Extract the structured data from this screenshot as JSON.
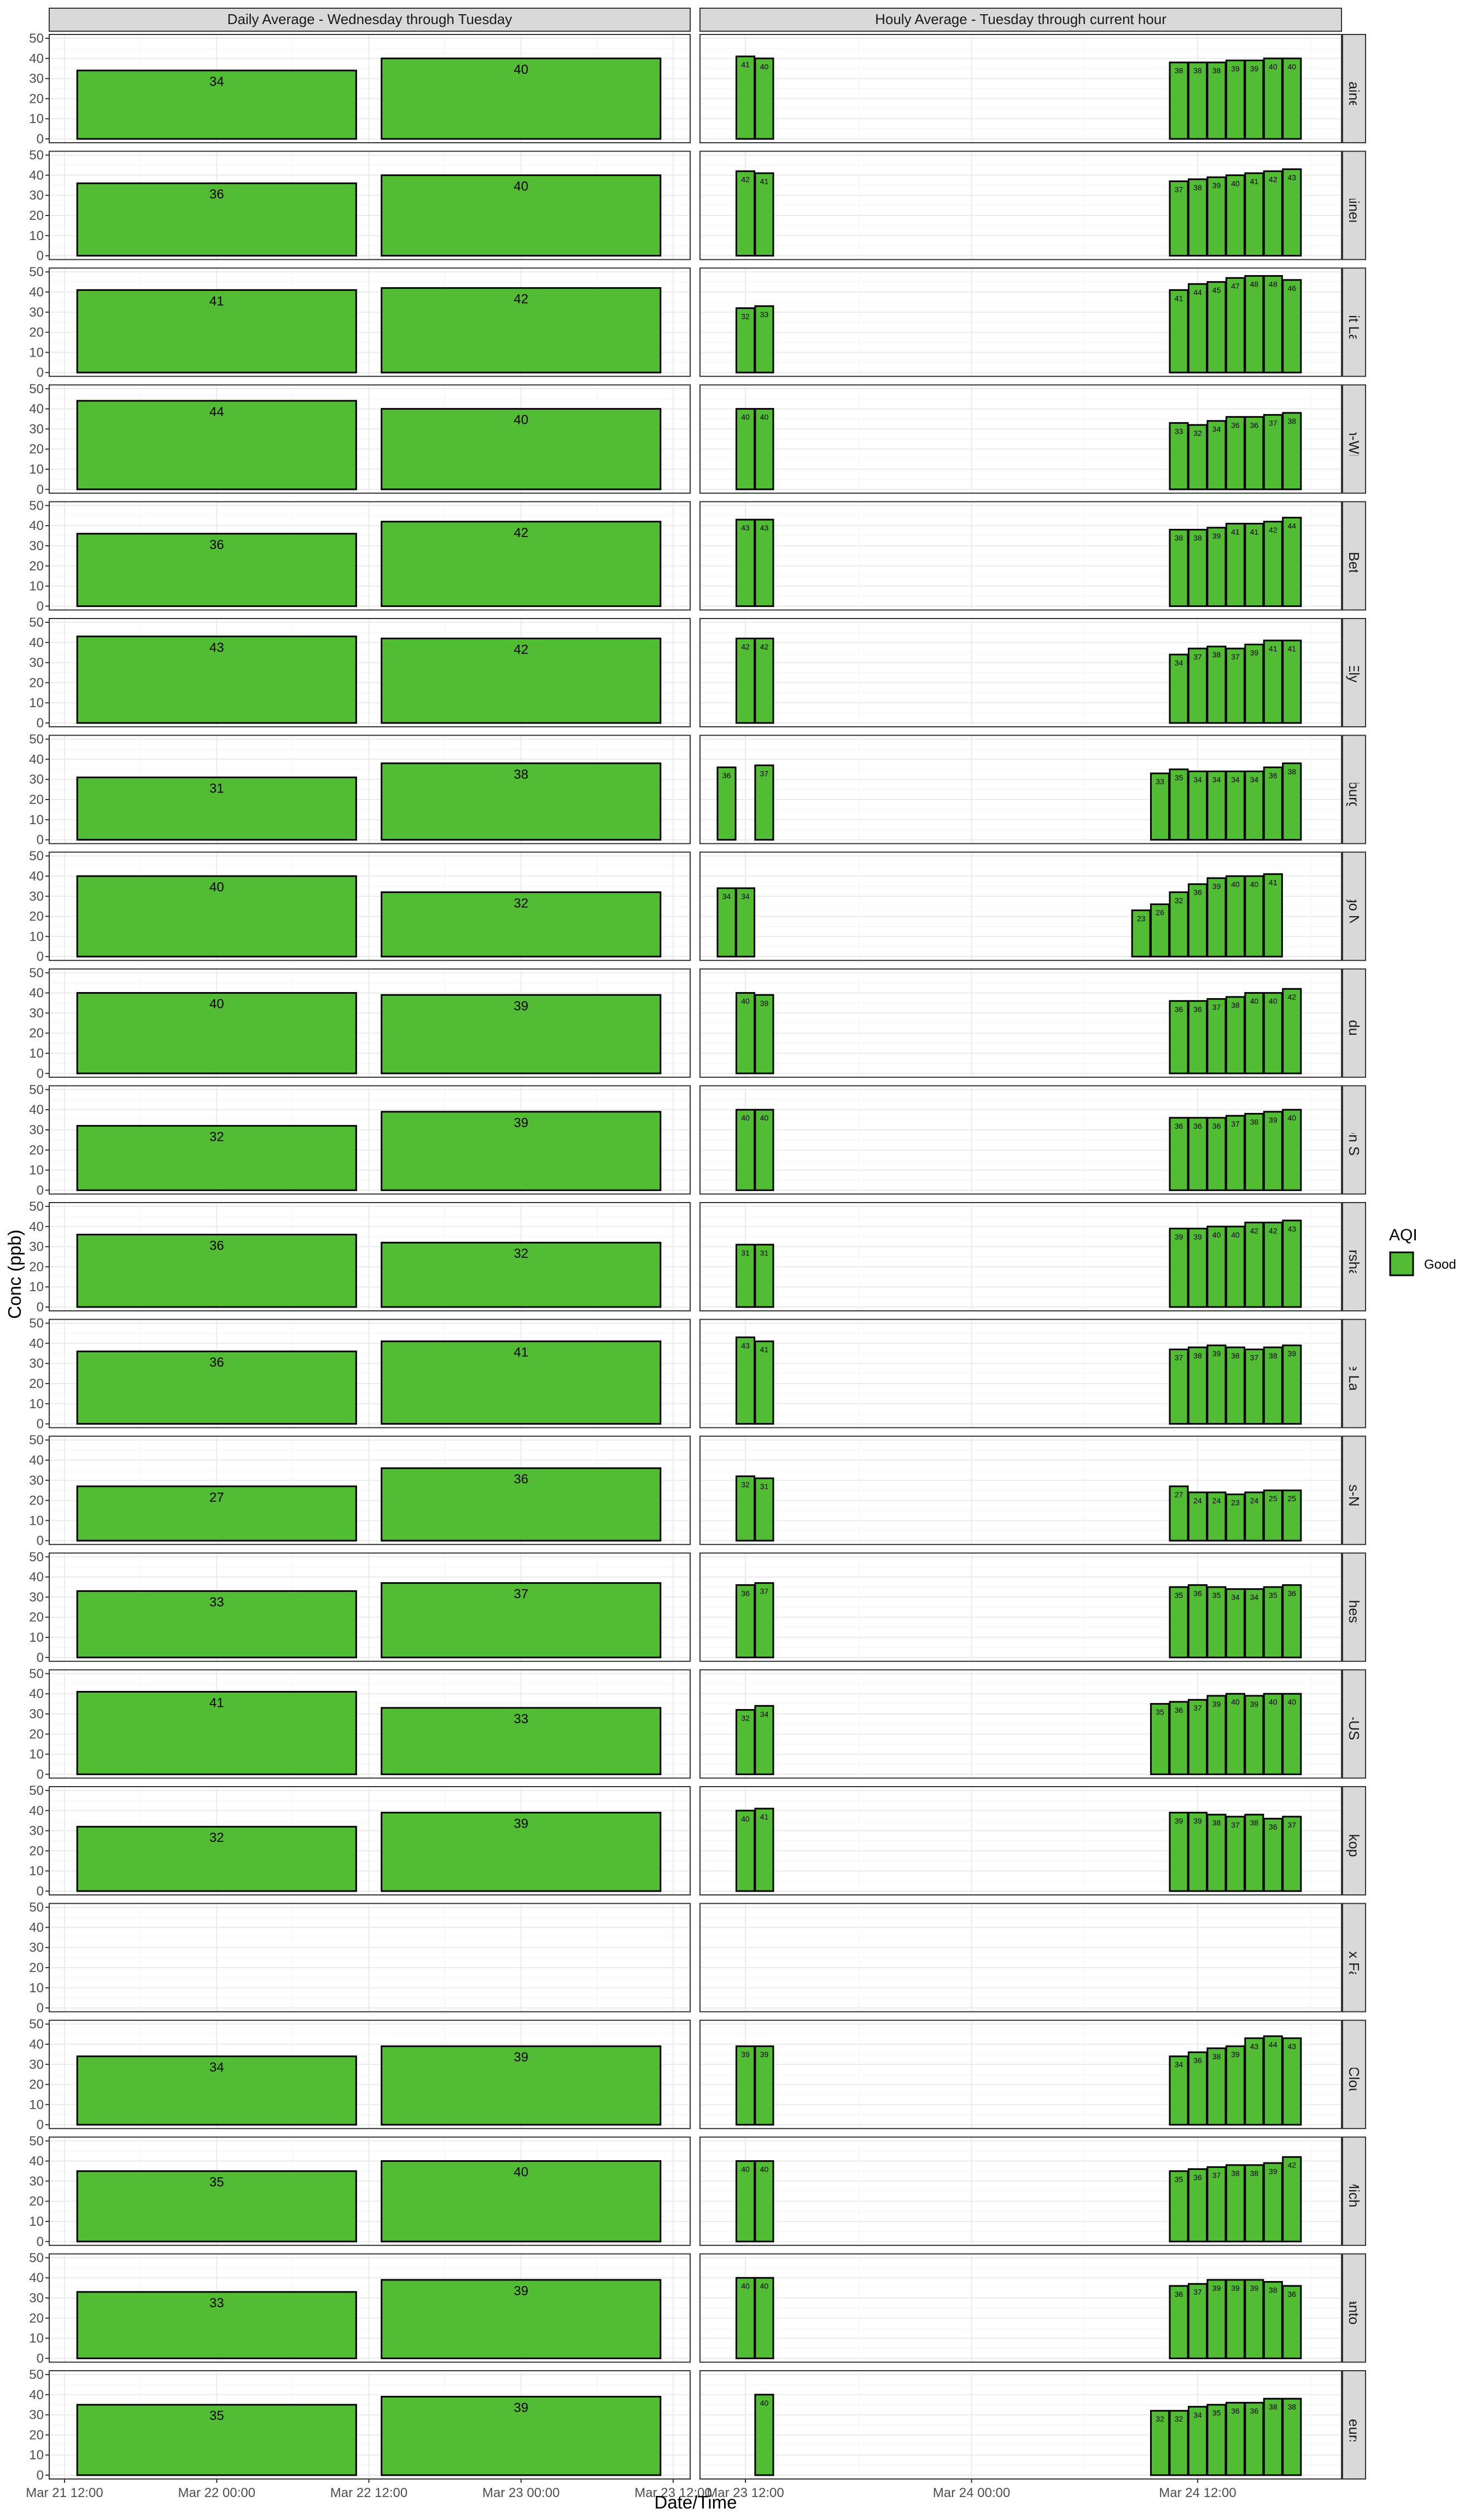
{
  "chart_data": {
    "type": "bar",
    "facet_columns": [
      "Daily Average - Wednesday through Tuesday",
      "Houly Average - Tuesday through current hour"
    ],
    "ylabel": "Conc (ppb)",
    "xlabel": "Date/Time",
    "ylim": [
      0,
      50
    ],
    "y_ticks": [
      0,
      10,
      20,
      30,
      40,
      50
    ],
    "x_ticks": [
      "Mar 21 12:00",
      "Mar 22 00:00",
      "Mar 22 12:00",
      "Mar 23 00:00",
      "Mar 23 12:00",
      "Mar 24 00:00",
      "Mar 24 12:00"
    ],
    "legend": {
      "title": "AQI",
      "entries": [
        {
          "label": "Good",
          "color": "#52bc35"
        }
      ],
      "placement": "right"
    },
    "colors": {
      "good": "#52bc35",
      "strip_bg": "#d9d9d9",
      "grid": "#ebebeb",
      "border": "#333333"
    },
    "daily_dates": [
      "Mar 22",
      "Mar 23"
    ],
    "hourly_times": [
      "Mar 23 11:00",
      "Mar 23 12:00",
      "Mar 23 13:00",
      "Mar 24 09:00",
      "Mar 24 10:00",
      "Mar 24 11:00",
      "Mar 24 12:00",
      "Mar 24 13:00",
      "Mar 24 14:00",
      "Mar 24 15:00",
      "Mar 24 16:00",
      "Mar 24 17:00"
    ],
    "sites": [
      {
        "name": "Blaine",
        "daily": [
          34,
          40
        ],
        "hourly": [
          null,
          41,
          40,
          null,
          null,
          38,
          38,
          38,
          39,
          39,
          40,
          40
        ]
      },
      {
        "name": "Brainerd",
        "daily": [
          36,
          40
        ],
        "hourly": [
          null,
          42,
          41,
          null,
          null,
          37,
          38,
          39,
          40,
          41,
          42,
          43
        ]
      },
      {
        "name": "Detroit Lakes",
        "daily": [
          41,
          42
        ],
        "hourly": [
          null,
          32,
          33,
          null,
          null,
          41,
          44,
          45,
          47,
          48,
          48,
          46
        ]
      },
      {
        "name": "Duluth-WDSE",
        "daily": [
          44,
          40
        ],
        "hourly": [
          null,
          40,
          40,
          null,
          null,
          33,
          32,
          34,
          36,
          36,
          37,
          38
        ]
      },
      {
        "name": "East Bethel",
        "daily": [
          36,
          42
        ],
        "hourly": [
          null,
          43,
          43,
          null,
          null,
          38,
          38,
          39,
          41,
          41,
          42,
          44
        ]
      },
      {
        "name": "Ely",
        "daily": [
          43,
          42
        ],
        "hourly": [
          null,
          42,
          42,
          null,
          null,
          34,
          37,
          38,
          37,
          39,
          41,
          41
        ]
      },
      {
        "name": "Emmetsburg_ILCC",
        "daily": [
          31,
          38
        ],
        "hourly": [
          36,
          null,
          37,
          null,
          33,
          35,
          34,
          34,
          34,
          34,
          36,
          38
        ]
      },
      {
        "name": "Fargo NW",
        "daily": [
          40,
          32
        ],
        "hourly": [
          34,
          34,
          null,
          23,
          26,
          32,
          36,
          39,
          40,
          40,
          41,
          null
        ]
      },
      {
        "name": "Fond du Lac",
        "daily": [
          40,
          39
        ],
        "hourly": [
          null,
          40,
          39,
          null,
          null,
          36,
          36,
          37,
          38,
          40,
          40,
          42
        ]
      },
      {
        "name": "Marine on St. Croix",
        "daily": [
          32,
          39
        ],
        "hourly": [
          null,
          40,
          40,
          null,
          null,
          36,
          36,
          36,
          37,
          38,
          39,
          40
        ]
      },
      {
        "name": "Marshall",
        "daily": [
          36,
          32
        ],
        "hourly": [
          null,
          31,
          31,
          null,
          null,
          39,
          39,
          40,
          40,
          42,
          42,
          43
        ]
      },
      {
        "name": "Mille Lacs",
        "daily": [
          36,
          41
        ],
        "hourly": [
          null,
          43,
          41,
          null,
          null,
          37,
          38,
          39,
          38,
          37,
          38,
          39
        ]
      },
      {
        "name": "Minneapolis-Near Road",
        "daily": [
          27,
          36
        ],
        "hourly": [
          null,
          32,
          31,
          null,
          null,
          27,
          24,
          24,
          23,
          24,
          25,
          25
        ]
      },
      {
        "name": "Rochester",
        "daily": [
          33,
          37
        ],
        "hourly": [
          null,
          36,
          37,
          null,
          null,
          35,
          36,
          35,
          34,
          34,
          35,
          36
        ]
      },
      {
        "name": "SF-USD",
        "daily": [
          41,
          33
        ],
        "hourly": [
          null,
          32,
          34,
          null,
          35,
          36,
          37,
          39,
          40,
          39,
          40,
          40
        ]
      },
      {
        "name": "Shakopee",
        "daily": [
          32,
          39
        ],
        "hourly": [
          null,
          40,
          41,
          null,
          null,
          39,
          39,
          38,
          37,
          38,
          36,
          37
        ]
      },
      {
        "name": "Sioux Falls",
        "daily": [
          null,
          null
        ],
        "hourly": [
          null,
          null,
          null,
          null,
          null,
          null,
          null,
          null,
          null,
          null,
          null,
          null
        ]
      },
      {
        "name": "St. Cloud",
        "daily": [
          34,
          39
        ],
        "hourly": [
          null,
          39,
          39,
          null,
          null,
          34,
          36,
          38,
          39,
          43,
          44,
          43
        ]
      },
      {
        "name": "St. Michael",
        "daily": [
          35,
          40
        ],
        "hourly": [
          null,
          40,
          40,
          null,
          null,
          35,
          36,
          37,
          38,
          38,
          39,
          42
        ]
      },
      {
        "name": "Stanton",
        "daily": [
          33,
          39
        ],
        "hourly": [
          null,
          40,
          40,
          null,
          null,
          36,
          37,
          39,
          39,
          39,
          38,
          36
        ]
      },
      {
        "name": "Voyageurs NP",
        "daily": [
          35,
          39
        ],
        "hourly": [
          null,
          null,
          40,
          null,
          32,
          32,
          34,
          35,
          36,
          36,
          38,
          38
        ]
      }
    ]
  }
}
